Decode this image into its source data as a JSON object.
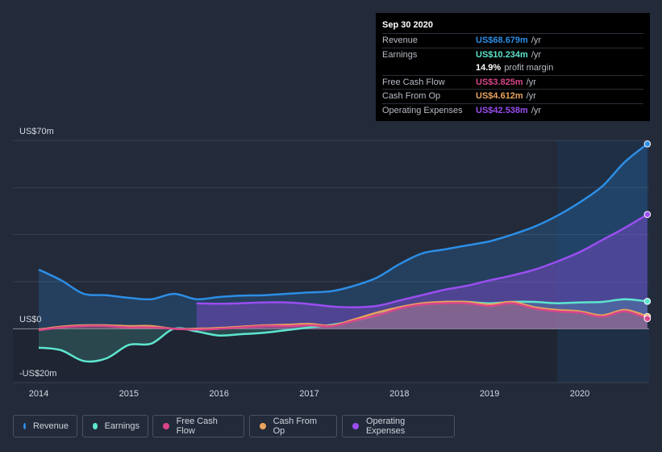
{
  "colors": {
    "revenue": "#2c8ee6",
    "earnings": "#5ee6cf",
    "free_cash_flow": "#d9458a",
    "cash_from_op": "#e8a45e",
    "operating_expenses": "#9a4ef0"
  },
  "tooltip": {
    "date": "Sep 30 2020",
    "rows": [
      {
        "label": "Revenue",
        "value": "US$68.679m",
        "unit": "/yr"
      },
      {
        "label": "Earnings",
        "value": "US$10.234m",
        "unit": "/yr"
      },
      {
        "label": "",
        "value": "14.9%",
        "unit": "profit margin"
      },
      {
        "label": "Free Cash Flow",
        "value": "US$3.825m",
        "unit": "/yr"
      },
      {
        "label": "Cash From Op",
        "value": "US$4.612m",
        "unit": "/yr"
      },
      {
        "label": "Operating Expenses",
        "value": "US$42.538m",
        "unit": "/yr"
      }
    ]
  },
  "legend": [
    "Revenue",
    "Earnings",
    "Free Cash Flow",
    "Cash From Op",
    "Operating Expenses"
  ],
  "chart_data": {
    "type": "area",
    "title": "",
    "xlabel": "",
    "ylabel": "",
    "ylim": [
      -20,
      70
    ],
    "xlim": [
      2013.85,
      2020.75
    ],
    "x_ticks": [
      2014,
      2015,
      2016,
      2017,
      2018,
      2019,
      2020
    ],
    "x_tick_labels": [
      "2014",
      "2015",
      "2016",
      "2017",
      "2018",
      "2019",
      "2020"
    ],
    "y_ticks": [
      70,
      0,
      -20
    ],
    "y_tick_labels": [
      "US$70m",
      "US$0",
      "-US$20m"
    ],
    "highlight_range": [
      2019.75,
      2020.75
    ],
    "series": [
      {
        "name": "Revenue",
        "key": "revenue",
        "x": [
          2014.0,
          2014.25,
          2014.5,
          2014.75,
          2015.0,
          2015.25,
          2015.5,
          2015.75,
          2016.0,
          2016.25,
          2016.5,
          2016.75,
          2017.0,
          2017.25,
          2017.5,
          2017.75,
          2018.0,
          2018.25,
          2018.5,
          2018.75,
          2019.0,
          2019.25,
          2019.5,
          2019.75,
          2020.0,
          2020.25,
          2020.5,
          2020.75
        ],
        "values": [
          22,
          18,
          13,
          12.5,
          11.5,
          11,
          13,
          11,
          11.8,
          12.3,
          12.5,
          13,
          13.5,
          14,
          16,
          19,
          24,
          28,
          29.5,
          31,
          32.5,
          35,
          38,
          42,
          47,
          53,
          62,
          68.7
        ]
      },
      {
        "name": "Earnings",
        "key": "earnings",
        "x": [
          2014.0,
          2014.25,
          2014.5,
          2014.75,
          2015.0,
          2015.25,
          2015.5,
          2015.75,
          2016.0,
          2016.25,
          2016.5,
          2016.75,
          2017.0,
          2017.25,
          2017.5,
          2017.75,
          2018.0,
          2018.25,
          2018.5,
          2018.75,
          2019.0,
          2019.25,
          2019.5,
          2019.75,
          2020.0,
          2020.25,
          2020.5,
          2020.75
        ],
        "values": [
          -7,
          -8,
          -12,
          -11,
          -6,
          -5.5,
          0,
          -1,
          -2.5,
          -2,
          -1.5,
          -0.5,
          0.5,
          1.5,
          3,
          5,
          8,
          9,
          10,
          10,
          9.5,
          10,
          10,
          9.5,
          9.8,
          10,
          11,
          10.2
        ]
      },
      {
        "name": "Free Cash Flow",
        "key": "free_cash_flow",
        "x": [
          2014.0,
          2014.25,
          2014.5,
          2014.75,
          2015.0,
          2015.25,
          2015.5,
          2015.75,
          2016.0,
          2016.25,
          2016.5,
          2016.75,
          2017.0,
          2017.25,
          2017.5,
          2017.75,
          2018.0,
          2018.25,
          2018.5,
          2018.75,
          2019.0,
          2019.25,
          2019.5,
          2019.75,
          2020.0,
          2020.25,
          2020.5,
          2020.75
        ],
        "values": [
          -0.5,
          0.5,
          1,
          1,
          0.5,
          0.5,
          0,
          -0.3,
          0,
          0.5,
          1,
          1,
          1.3,
          1,
          3,
          5,
          7.5,
          9,
          9.5,
          9.5,
          8.5,
          9.5,
          7.5,
          6.5,
          6,
          4.5,
          6.5,
          3.8
        ]
      },
      {
        "name": "Cash From Op",
        "key": "cash_from_op",
        "x": [
          2014.0,
          2014.25,
          2014.5,
          2014.75,
          2015.0,
          2015.25,
          2015.5,
          2015.75,
          2016.0,
          2016.25,
          2016.5,
          2016.75,
          2017.0,
          2017.25,
          2017.5,
          2017.75,
          2018.0,
          2018.25,
          2018.5,
          2018.75,
          2019.0,
          2019.25,
          2019.5,
          2019.75,
          2020.0,
          2020.25,
          2020.5,
          2020.75
        ],
        "values": [
          -0.3,
          0.8,
          1.3,
          1.3,
          1,
          1,
          0,
          0,
          0.3,
          0.8,
          1.3,
          1.5,
          1.8,
          1.2,
          3.5,
          6,
          8,
          9.5,
          10,
          10,
          9,
          10,
          8,
          7,
          6.5,
          5,
          7,
          4.6
        ]
      },
      {
        "name": "Operating Expenses",
        "key": "operating_expenses",
        "x": [
          2015.75,
          2016.0,
          2016.25,
          2016.5,
          2016.75,
          2017.0,
          2017.25,
          2017.5,
          2017.75,
          2018.0,
          2018.25,
          2018.5,
          2018.75,
          2019.0,
          2019.25,
          2019.5,
          2019.75,
          2020.0,
          2020.25,
          2020.5,
          2020.75
        ],
        "values": [
          9.5,
          9.3,
          9.5,
          9.8,
          9.8,
          9.2,
          8.3,
          8,
          8.5,
          10.5,
          12.5,
          14.5,
          16,
          18,
          19.8,
          22,
          25,
          28.5,
          33,
          37.5,
          42.5
        ]
      }
    ]
  }
}
